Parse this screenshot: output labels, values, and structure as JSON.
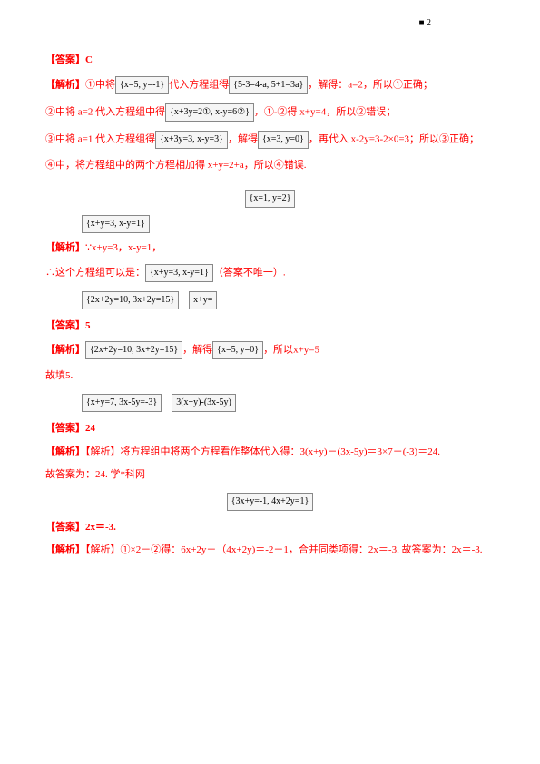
{
  "topMark": "■ 2",
  "q1": {
    "answer_label": "【答案】C",
    "explain_label": "【解析】",
    "l1_a": "①中将",
    "l1_b": "{x=5, y=-1}",
    "l1_c": "代入方程组得",
    "l1_d": "{5-3=4-a, 5+1=3a}",
    "l1_e": "，解得：a=2，所以①正确；",
    "l2_a": "②中将 a=2 代入方程组中得",
    "l2_b": "{x+3y=2①, x-y=6②}",
    "l2_c": "，①-②得 x+y=4，所以②错误；",
    "l3_a": "③中将 a=1 代入方程组得",
    "l3_b": "{x+3y=3, x-y=3}",
    "l3_c": "，解得",
    "l3_d": "{x=3, y=0}",
    "l3_e": "，再代入 x-2y=3-2×0=3；所以③正确；",
    "l4_a": "④中，将方程组中的两个方程相加得 x+y=2+a，所以④错误."
  },
  "q2": {
    "eq1": "{x=1, y=2}",
    "eq2": "{x+y=3, x-y=1}",
    "explain_label": "【解析】",
    "l1_a": "∵",
    "l1_b": "x+y=3",
    "l1_c": "，",
    "l1_d": "x-y=1",
    "l1_e": "，",
    "l2_a": "∴这个方程组可以是：",
    "l2_b": "{x+y=3, x-y=1}",
    "l2_c": "（答案不唯一）."
  },
  "q3": {
    "eq1": "{2x+2y=10, 3x+2y=15}",
    "eq2": "x+y=",
    "answer_label": "【答案】5",
    "explain_label": "【解析】",
    "l1_a": "{2x+2y=10, 3x+2y=15}",
    "l1_b": "，解得",
    "l1_c": "{x=5, y=0}",
    "l1_d": "，所以",
    "l1_e": "x+y=5",
    "l2": "故填5."
  },
  "q4": {
    "eq1": "{x+y=7, 3x-5y=-3}",
    "eq2": "3(x+y)-(3x-5y)",
    "answer_label": "【答案】24",
    "explain_label": "【解析】将方程组中将两个方程看作整体代入得：3(x+y)－(3x-5y)＝3×7－(-3)＝24.",
    "l2": "故答案为：24.   学*科网"
  },
  "q5": {
    "eq1": "{3x+y=-1, 4x+2y=1}",
    "answer_label": "【答案】2x＝-3.",
    "explain_label": "【解析】①×2－②得：6x+2y－（4x+2y)＝-2－1，合并同类项得：2x＝-3. 故答案为：2x＝-3."
  }
}
